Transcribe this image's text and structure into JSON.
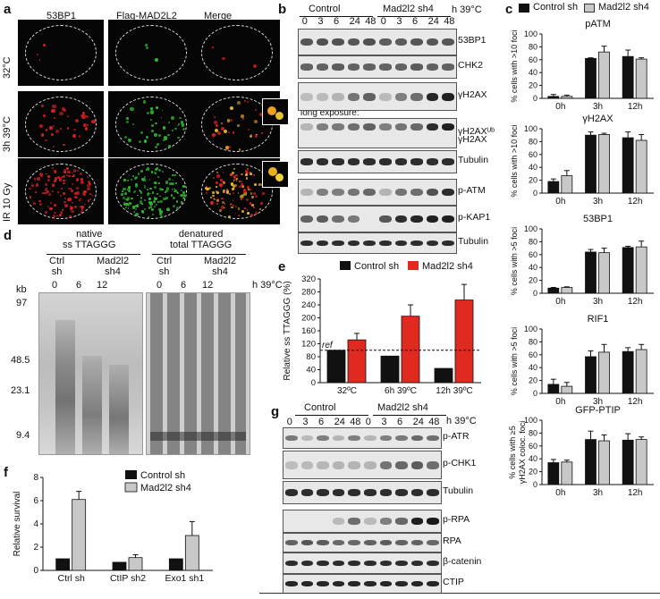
{
  "panel_letters": {
    "a": "a",
    "b": "b",
    "c": "c",
    "d": "d",
    "e": "e",
    "f": "f",
    "g": "g"
  },
  "panel_a": {
    "columns": [
      "53BP1",
      "Flag-MAD2L2",
      "Merge"
    ],
    "rows": [
      "32°C",
      "3h 39°C",
      "IR 10 Gy"
    ],
    "colors": {
      "red": "#e02020",
      "green": "#30c030",
      "merge": "#e0a020"
    }
  },
  "panel_b": {
    "groups": [
      "Control",
      "Mad2l2 sh4"
    ],
    "lanes": [
      "0",
      "3",
      "6",
      "24",
      "48",
      "0",
      "3",
      "6",
      "24",
      "48"
    ],
    "unit": "h 39°C",
    "blots": [
      "53BP1",
      "CHK2",
      "γH2AX",
      "γH2AXᵁᵇ",
      "γH2AX",
      "Tubulin",
      "p-ATM",
      "p-KAP1",
      "Tubulin"
    ],
    "long_exposure": "long exposure:"
  },
  "panel_d": {
    "headers": [
      "native\nss TTAGGG",
      "denatured\ntotal TTAGGG"
    ],
    "groups": [
      "Ctrl\nsh",
      "Mad2l2\nsh4",
      "Ctrl\nsh",
      "Mad2l2\nsh4"
    ],
    "lanes": [
      "0",
      "6",
      "12",
      "0",
      "6",
      "12"
    ],
    "unit": "h 39°C",
    "kb": "kb",
    "markers": [
      "97",
      "48.5",
      "23.1",
      "9.4"
    ]
  },
  "panel_g": {
    "groups": [
      "Control",
      "Mad2l2 sh4"
    ],
    "lanes": [
      "0",
      "3",
      "6",
      "24",
      "48",
      "0",
      "3",
      "6",
      "24",
      "48"
    ],
    "unit": "h 39°C",
    "blots": [
      "p-ATR",
      "p-CHK1",
      "Tubulin",
      "p-RPA",
      "RPA",
      "β-catenin",
      "CTIP"
    ]
  },
  "chart_data": [
    {
      "id": "c-legend",
      "type": "bar",
      "legend": [
        "Control sh",
        "Mad2l2 sh4"
      ],
      "colors": [
        "#111111",
        "#c8c8c8"
      ]
    },
    {
      "id": "c1",
      "type": "bar",
      "title": "pATM",
      "ylabel": "% cells with >10 foci",
      "categories": [
        "0h",
        "3h",
        "12h"
      ],
      "ylim": [
        0,
        100
      ],
      "yticks": [
        0,
        20,
        40,
        60,
        80,
        100
      ],
      "series": [
        {
          "name": "Control sh",
          "values": [
            3,
            62,
            65
          ],
          "err": [
            3,
            1,
            10
          ]
        },
        {
          "name": "Mad2l2 sh4",
          "values": [
            3,
            72,
            61
          ],
          "err": [
            2,
            9,
            2
          ]
        }
      ]
    },
    {
      "id": "c2",
      "type": "bar",
      "title": "γH2AX",
      "ylabel": "% cells with >10 foci",
      "categories": [
        "0h",
        "3h",
        "12h"
      ],
      "ylim": [
        0,
        100
      ],
      "yticks": [
        0,
        20,
        40,
        60,
        80,
        100
      ],
      "series": [
        {
          "name": "Control sh",
          "values": [
            18,
            90,
            86
          ],
          "err": [
            4,
            5,
            9
          ]
        },
        {
          "name": "Mad2l2 sh4",
          "values": [
            27,
            91,
            82
          ],
          "err": [
            8,
            2,
            9
          ]
        }
      ]
    },
    {
      "id": "c3",
      "type": "bar",
      "title": "53BP1",
      "ylabel": "% cells with >5 foci",
      "categories": [
        "0h",
        "3h",
        "12h"
      ],
      "ylim": [
        0,
        100
      ],
      "yticks": [
        0,
        20,
        40,
        60,
        80,
        100
      ],
      "series": [
        {
          "name": "Control sh",
          "values": [
            8,
            64,
            71
          ],
          "err": [
            1,
            4,
            2
          ]
        },
        {
          "name": "Mad2l2 sh4",
          "values": [
            9,
            63,
            72
          ],
          "err": [
            1,
            7,
            9
          ]
        }
      ]
    },
    {
      "id": "c4",
      "type": "bar",
      "title": "RIF1",
      "ylabel": "% cells with >5 foci",
      "categories": [
        "0h",
        "3h",
        "12h"
      ],
      "ylim": [
        0,
        100
      ],
      "yticks": [
        0,
        20,
        40,
        60,
        80,
        100
      ],
      "series": [
        {
          "name": "Control sh",
          "values": [
            14,
            57,
            65
          ],
          "err": [
            8,
            9,
            6
          ]
        },
        {
          "name": "Mad2l2 sh4",
          "values": [
            11,
            64,
            68
          ],
          "err": [
            6,
            12,
            8
          ]
        }
      ]
    },
    {
      "id": "c5",
      "type": "bar",
      "title": "GFP-PTIP",
      "ylabel": "% cells with ≥5 γH2AX coloc. foci",
      "categories": [
        "0h",
        "3h",
        "12h"
      ],
      "ylim": [
        0,
        100
      ],
      "yticks": [
        0,
        20,
        40,
        60,
        80,
        100
      ],
      "series": [
        {
          "name": "Control sh",
          "values": [
            34,
            70,
            69
          ],
          "err": [
            5,
            13,
            10
          ]
        },
        {
          "name": "Mad2l2 sh4",
          "values": [
            35,
            68,
            70
          ],
          "err": [
            3,
            9,
            4
          ]
        }
      ]
    },
    {
      "id": "e",
      "type": "bar",
      "ylabel": "Relative ss TTAGGG (%)",
      "legend": [
        "Control sh",
        "Mad2l2 sh4"
      ],
      "colors": [
        "#111111",
        "#e02a20"
      ],
      "categories": [
        "32ºC",
        "6h 39ºC",
        "12h 39ºC"
      ],
      "ylim": [
        0,
        320
      ],
      "yticks": [
        0,
        40,
        80,
        120,
        160,
        200,
        240,
        280,
        320
      ],
      "ref_line": 100,
      "ref_label": "ref",
      "series": [
        {
          "name": "Control sh",
          "values": [
            100,
            82,
            44
          ],
          "err": [
            0,
            0,
            0
          ]
        },
        {
          "name": "Mad2l2 sh4",
          "values": [
            132,
            205,
            255
          ],
          "err": [
            20,
            35,
            48
          ]
        }
      ]
    },
    {
      "id": "f",
      "type": "bar",
      "ylabel": "Relative survival",
      "legend": [
        "Control sh",
        "Mad2l2 sh4"
      ],
      "colors": [
        "#111111",
        "#c8c8c8"
      ],
      "categories": [
        "Ctrl sh",
        "CtIP sh2",
        "Exo1 sh1"
      ],
      "ylim": [
        0,
        8
      ],
      "yticks": [
        0,
        2,
        4,
        6,
        8
      ],
      "series": [
        {
          "name": "Control sh",
          "values": [
            1,
            0.7,
            1
          ],
          "err": [
            0,
            0,
            0
          ]
        },
        {
          "name": "Mad2l2 sh4",
          "values": [
            6.1,
            1.1,
            3.0
          ],
          "err": [
            0.7,
            0.25,
            1.2
          ]
        }
      ]
    }
  ]
}
